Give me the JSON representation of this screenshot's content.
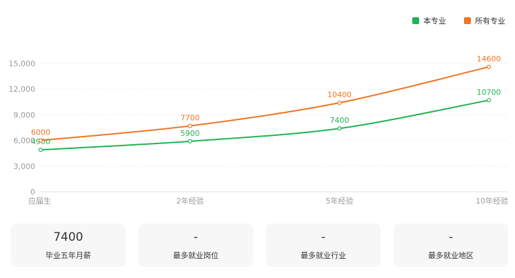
{
  "legend": [
    {
      "label": "本专业",
      "color": "#21b355"
    },
    {
      "label": "所有专业",
      "color": "#f07422"
    }
  ],
  "chart_data": {
    "type": "line",
    "categories": [
      "应届生",
      "2年经验",
      "5年经验",
      "10年经验"
    ],
    "series": [
      {
        "name": "本专业",
        "color": "#21b355",
        "values": [
          4900,
          5900,
          7400,
          10700
        ]
      },
      {
        "name": "所有专业",
        "color": "#f07422",
        "values": [
          6000,
          7700,
          10400,
          14600
        ]
      }
    ],
    "ylim": [
      0,
      15000
    ],
    "yticks": [
      "0",
      "3,000",
      "6,000",
      "9,000",
      "12,000",
      "15,000"
    ],
    "grid": true,
    "legend_position": "top-right"
  },
  "cards": [
    {
      "value": "7400",
      "label": "毕业五年月薪"
    },
    {
      "value": "-",
      "label": "最多就业岗位"
    },
    {
      "value": "-",
      "label": "最多就业行业"
    },
    {
      "value": "-",
      "label": "最多就业地区"
    }
  ]
}
